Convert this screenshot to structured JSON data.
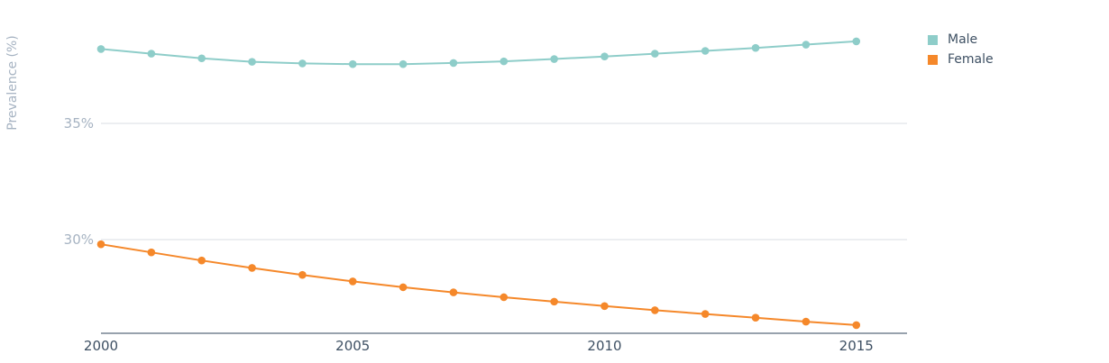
{
  "chart_data": {
    "type": "line",
    "ylabel": "Prevalence (%)",
    "xlabel": "",
    "x": [
      2000,
      2001,
      2002,
      2003,
      2004,
      2005,
      2006,
      2007,
      2008,
      2009,
      2010,
      2011,
      2012,
      2013,
      2014,
      2015
    ],
    "x_ticks": [
      2000,
      2005,
      2010,
      2015
    ],
    "x_tick_labels": [
      "2000",
      "2005",
      "2010",
      "2015"
    ],
    "y_ticks": [
      30,
      35
    ],
    "y_tick_labels": [
      "30%",
      "35%"
    ],
    "xlim": [
      2000,
      2016
    ],
    "ylim": [
      25.9,
      39.6
    ],
    "grid": true,
    "legend_position": "top-right",
    "series": [
      {
        "name": "Male",
        "color": "#8ecdc9",
        "values": [
          38.2,
          38.0,
          37.8,
          37.65,
          37.58,
          37.55,
          37.55,
          37.6,
          37.67,
          37.77,
          37.88,
          38.0,
          38.12,
          38.25,
          38.39,
          38.53
        ]
      },
      {
        "name": "Female",
        "color": "#f5882a",
        "values": [
          29.8,
          29.45,
          29.1,
          28.78,
          28.48,
          28.2,
          27.95,
          27.73,
          27.52,
          27.33,
          27.14,
          26.96,
          26.8,
          26.64,
          26.47,
          26.32
        ]
      }
    ]
  }
}
